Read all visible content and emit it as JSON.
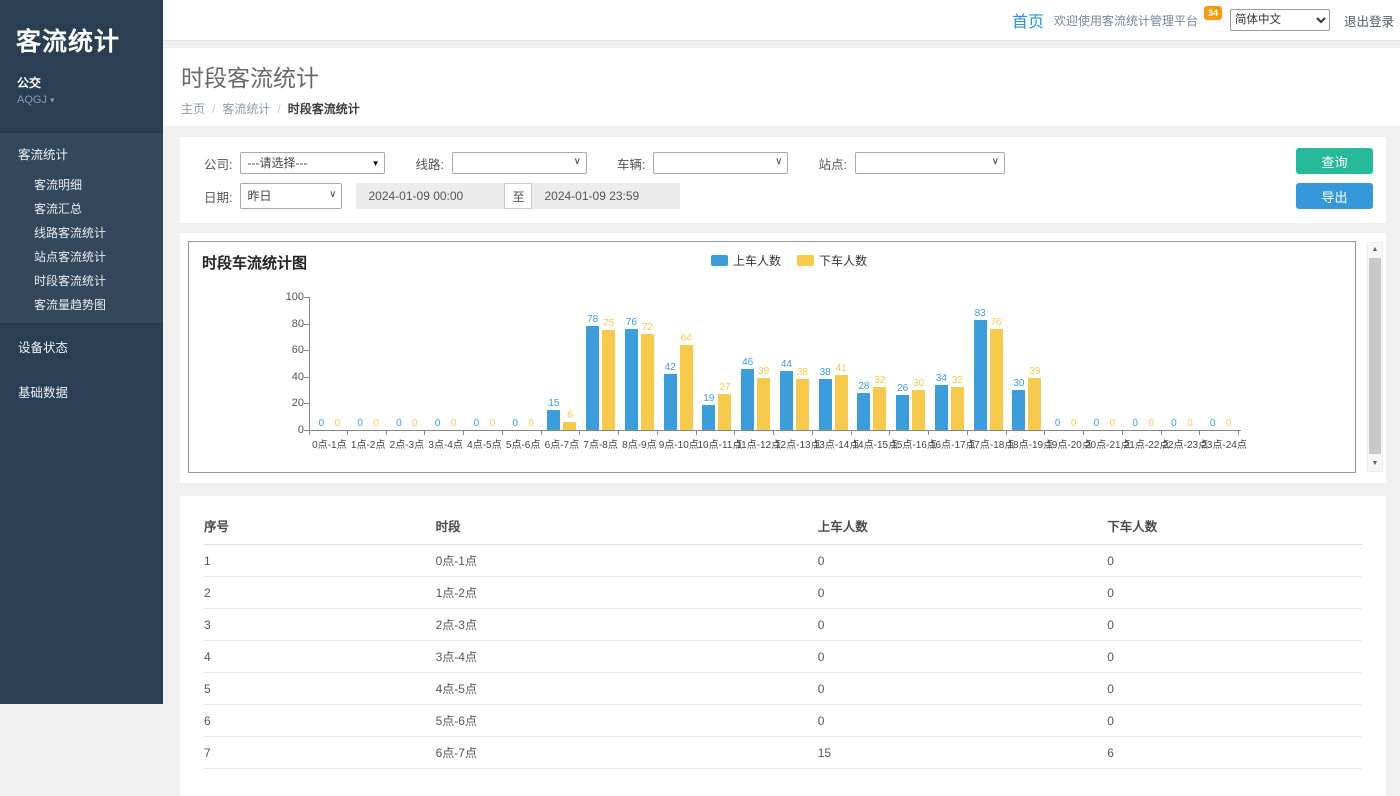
{
  "sidebar": {
    "brand": "客流统计",
    "org": "公交",
    "user": "AQGJ",
    "menu_parent": "客流统计",
    "menu_children": [
      "客流明细",
      "客流汇总",
      "线路客流统计",
      "站点客流统计",
      "时段客流统计",
      "客流量趋势图"
    ],
    "menu_other": [
      "设备状态",
      "基础数据"
    ]
  },
  "topbar": {
    "home": "首页",
    "welcome": "欢迎使用客流统计管理平台",
    "badge": "34",
    "language": "简体中文",
    "logout": "退出登录"
  },
  "page": {
    "title": "时段客流统计",
    "breadcrumb": [
      "主页",
      "客流统计",
      "时段客流统计"
    ]
  },
  "filters": {
    "company_label": "公司:",
    "company_value": "---请选择---",
    "line_label": "线路:",
    "vehicle_label": "车辆:",
    "station_label": "站点:",
    "date_label": "日期:",
    "date_preset": "昨日",
    "date_from": "2024-01-09 00:00",
    "date_sep": "至",
    "date_to": "2024-01-09 23:59",
    "query_button": "查询",
    "export_button": "导出"
  },
  "chart_data": {
    "type": "bar",
    "title": "时段车流统计图",
    "categories": [
      "0点-1点",
      "1点-2点",
      "2点-3点",
      "3点-4点",
      "4点-5点",
      "5点-6点",
      "6点-7点",
      "7点-8点",
      "8点-9点",
      "9点-10点",
      "10点-11点",
      "11点-12点",
      "12点-13点",
      "13点-14点",
      "14点-15点",
      "15点-16点",
      "16点-17点",
      "17点-18点",
      "18点-19点",
      "19点-20点",
      "20点-21点",
      "21点-22点",
      "22点-23点",
      "23点-24点"
    ],
    "series": [
      {
        "name": "上车人数",
        "color": "#3D9DDB",
        "values": [
          0,
          0,
          0,
          0,
          0,
          0,
          15,
          78,
          76,
          42,
          19,
          46,
          44,
          38,
          28,
          26,
          34,
          83,
          30,
          0,
          0,
          0,
          0,
          0
        ]
      },
      {
        "name": "下车人数",
        "color": "#F7CA4E",
        "values": [
          0,
          0,
          0,
          0,
          0,
          0,
          6,
          75,
          72,
          64,
          27,
          39,
          38,
          41,
          32,
          30,
          32,
          76,
          39,
          0,
          0,
          0,
          0,
          0
        ]
      }
    ],
    "ylim": [
      0,
      100
    ],
    "yticks": [
      0,
      20,
      40,
      60,
      80,
      100
    ],
    "legend_position": "top",
    "grid": false
  },
  "table": {
    "headers": [
      "序号",
      "时段",
      "上车人数",
      "下车人数"
    ],
    "rows": [
      [
        "1",
        "0点-1点",
        "0",
        "0"
      ],
      [
        "2",
        "1点-2点",
        "0",
        "0"
      ],
      [
        "3",
        "2点-3点",
        "0",
        "0"
      ],
      [
        "4",
        "3点-4点",
        "0",
        "0"
      ],
      [
        "5",
        "4点-5点",
        "0",
        "0"
      ],
      [
        "6",
        "5点-6点",
        "0",
        "0"
      ],
      [
        "7",
        "6点-7点",
        "15",
        "6"
      ]
    ]
  }
}
